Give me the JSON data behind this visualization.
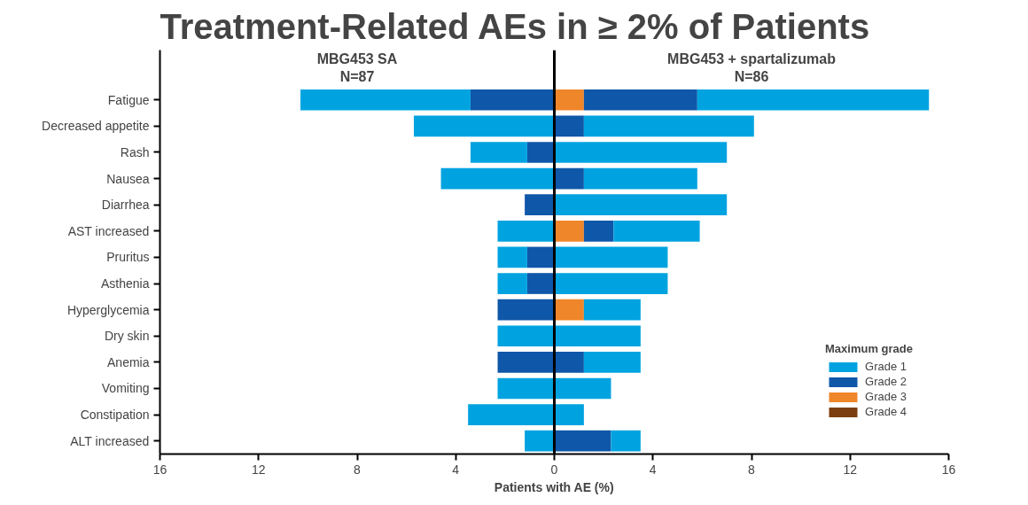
{
  "chart_data": {
    "type": "bar",
    "orientation": "horizontal",
    "stacked": true,
    "title": "Treatment-Related AEs in ≥ 2% of Patients",
    "xlabel": "Patients with AE (%)",
    "legend_title": "Maximum grade",
    "legend": "bottom right",
    "grid": false,
    "annotations": [
      "MBG453 SA\nN=87",
      "MBG453 + spartalizumab\nN=86"
    ],
    "categories": [
      "Fatigue",
      "Decreased appetite",
      "Rash",
      "Nausea",
      "Diarrhea",
      "AST increased",
      "Pruritus",
      "Asthenia",
      "Hyperglycemia",
      "Dry skin",
      "Anemia",
      "Vomiting",
      "Constipation",
      "ALT increased"
    ],
    "xlim": [
      -16,
      16
    ],
    "xticks": [
      {
        "value": -16,
        "label": "16"
      },
      {
        "value": -12,
        "label": "12"
      },
      {
        "value": -8,
        "label": "8"
      },
      {
        "value": -4,
        "label": "4"
      },
      0,
      4,
      8,
      12,
      16
    ],
    "ref_lines": [
      {
        "axis": "x",
        "value": 0,
        "color": "#000000"
      }
    ],
    "series": [
      {
        "color": "#0f57a8",
        "values": [
          -3.4,
          null,
          -1.1,
          null,
          -1.2,
          null,
          -1.1,
          -1.1,
          -2.3,
          null,
          -2.3,
          null,
          null,
          null
        ]
      },
      {
        "color": "#00a3e0",
        "values": [
          -6.9,
          -5.7,
          -2.3,
          -4.6,
          null,
          -2.3,
          -1.2,
          -1.2,
          null,
          -2.3,
          null,
          -2.3,
          -3.5,
          -1.2
        ]
      },
      {
        "name": "Grade 4",
        "color": "#7a3e10",
        "values": [
          null,
          null,
          null,
          null,
          null,
          null,
          null,
          null,
          null,
          null,
          null,
          null,
          null,
          null
        ]
      },
      {
        "name": "Grade 3",
        "color": "#f0862a",
        "values": [
          1.2,
          null,
          null,
          null,
          null,
          1.2,
          null,
          null,
          1.2,
          null,
          null,
          null,
          null,
          null
        ]
      },
      {
        "name": "Grade 2",
        "color": "#0f57a8",
        "values": [
          4.6,
          1.2,
          null,
          1.2,
          null,
          1.2,
          null,
          null,
          null,
          null,
          1.2,
          null,
          null,
          2.3
        ]
      },
      {
        "name": "Grade 1",
        "color": "#00a3e0",
        "values": [
          9.4,
          6.9,
          7.0,
          4.6,
          7.0,
          3.5,
          4.6,
          4.6,
          2.3,
          3.5,
          2.3,
          2.3,
          1.2,
          1.2
        ]
      }
    ]
  }
}
